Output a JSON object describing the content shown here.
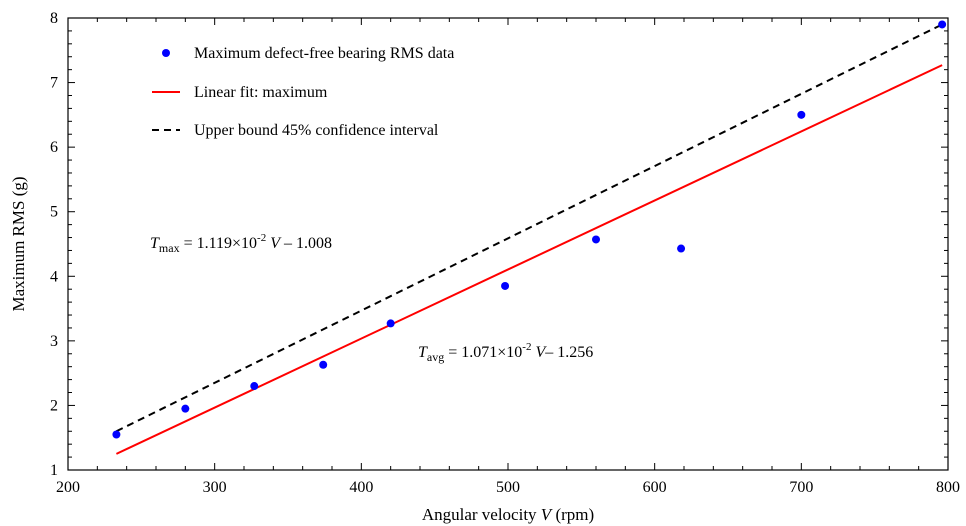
{
  "chart_data": {
    "type": "scatter",
    "xlabel_prefix": "Angular velocity ",
    "xlabel_var": "V",
    "xlabel_suffix": " (rpm)",
    "ylabel": "Maximum RMS (g)",
    "xlim": [
      200,
      800
    ],
    "ylim": [
      1,
      8
    ],
    "xticks": [
      200,
      300,
      400,
      500,
      600,
      700,
      800
    ],
    "yticks": [
      1,
      2,
      3,
      4,
      5,
      6,
      7,
      8
    ],
    "grid": false,
    "legend_position": "top-left",
    "series": [
      {
        "name": "Maximum defect-free bearing RMS data",
        "kind": "points",
        "color": "#0000ff",
        "x": [
          233,
          280,
          327,
          374,
          420,
          498,
          560,
          618,
          700,
          796
        ],
        "y": [
          1.55,
          1.95,
          2.3,
          2.63,
          3.27,
          3.85,
          4.57,
          4.43,
          6.5,
          7.9
        ]
      },
      {
        "name": "Linear fit: maximum",
        "kind": "line",
        "color": "#ff0000",
        "x": [
          233,
          796
        ],
        "y": [
          1.25,
          7.27
        ]
      },
      {
        "name": "Upper bound 45% confidence interval",
        "kind": "dashed",
        "color": "#000000",
        "x": [
          233,
          796
        ],
        "y": [
          1.6,
          7.9
        ]
      }
    ],
    "annotations": {
      "tmax": {
        "sym": "T",
        "sub": "max",
        "pre": " = 1.119×10",
        "exp": "-2",
        "var": "V",
        "post": " – 1.008"
      },
      "tavg": {
        "sym": "T",
        "sub": "avg",
        "pre": " = 1.071×10",
        "exp": "-2",
        "var": "V",
        "post": "– 1.256"
      }
    }
  }
}
